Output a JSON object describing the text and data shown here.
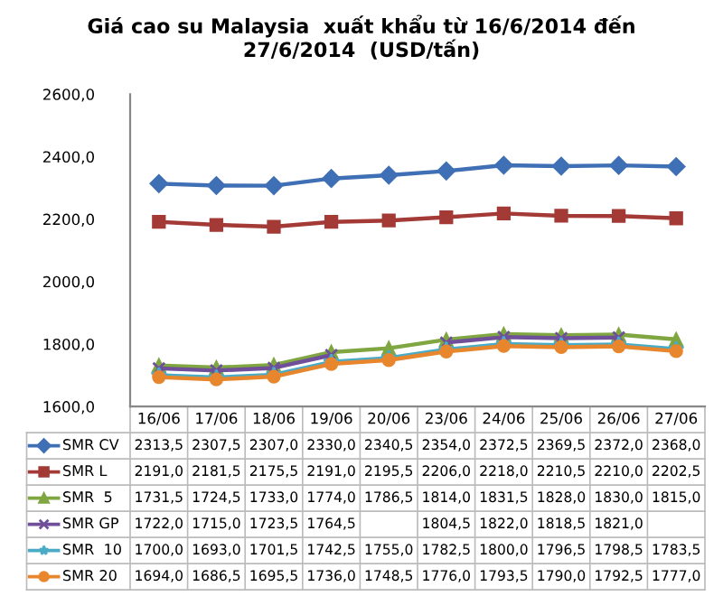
{
  "chart_data": {
    "type": "line",
    "title": "Giá cao su Malaysia  xuất khẩu từ 16/6/2014 đến\n27/6/2014  (USD/tấn)",
    "categories": [
      "16/06",
      "17/06",
      "18/06",
      "19/06",
      "20/06",
      "23/06",
      "24/06",
      "25/06",
      "26/06",
      "27/06"
    ],
    "ylim": [
      1600,
      2600
    ],
    "yticks": [
      {
        "value": 1600,
        "label": "1600,0"
      },
      {
        "value": 1800,
        "label": "1800,0"
      },
      {
        "value": 2000,
        "label": "2000,0"
      },
      {
        "value": 2200,
        "label": "2200,0"
      },
      {
        "value": 2400,
        "label": "2400,0"
      },
      {
        "value": 2600,
        "label": "2600,0"
      }
    ],
    "grid": false,
    "series": [
      {
        "name": "SMR CV",
        "color": "#3f6fb5",
        "marker": "diamond",
        "values": [
          2313.5,
          2307.5,
          2307.0,
          2330.0,
          2340.5,
          2354.0,
          2372.5,
          2369.5,
          2372.0,
          2368.0
        ],
        "value_labels": [
          "2313,5",
          "2307,5",
          "2307,0",
          "2330,0",
          "2340,5",
          "2354,0",
          "2372,5",
          "2369,5",
          "2372,0",
          "2368,0"
        ]
      },
      {
        "name": "SMR L",
        "color": "#a33a36",
        "marker": "square",
        "values": [
          2191.0,
          2181.5,
          2175.5,
          2191.0,
          2195.5,
          2206.0,
          2218.0,
          2210.5,
          2210.0,
          2202.5
        ],
        "value_labels": [
          "2191,0",
          "2181,5",
          "2175,5",
          "2191,0",
          "2195,5",
          "2206,0",
          "2218,0",
          "2210,5",
          "2210,0",
          "2202,5"
        ]
      },
      {
        "name": "SMR  5",
        "color": "#7fa640",
        "marker": "triangle",
        "values": [
          1731.5,
          1724.5,
          1733.0,
          1774.0,
          1786.5,
          1814.0,
          1831.5,
          1828.0,
          1830.0,
          1815.0
        ],
        "value_labels": [
          "1731,5",
          "1724,5",
          "1733,0",
          "1774,0",
          "1786,5",
          "1814,0",
          "1831,5",
          "1828,0",
          "1830,0",
          "1815,0"
        ]
      },
      {
        "name": "SMR GP",
        "color": "#6f4f9a",
        "marker": "cross",
        "values": [
          1722.0,
          1715.0,
          1723.5,
          1764.5,
          null,
          1804.5,
          1822.0,
          1818.5,
          1821.0,
          null
        ],
        "value_labels": [
          "1722,0",
          "1715,0",
          "1723,5",
          "1764,5",
          null,
          "1804,5",
          "1822,0",
          "1818,5",
          "1821,0",
          null
        ]
      },
      {
        "name": "SMR  10",
        "color": "#4aabc6",
        "marker": "star",
        "values": [
          1700.0,
          1693.0,
          1701.5,
          1742.5,
          1755.0,
          1782.5,
          1800.0,
          1796.5,
          1798.5,
          1783.5
        ],
        "value_labels": [
          "1700,0",
          "1693,0",
          "1701,5",
          "1742,5",
          "1755,0",
          "1782,5",
          "1800,0",
          "1796,5",
          "1798,5",
          "1783,5"
        ]
      },
      {
        "name": "SMR 20",
        "color": "#e8862e",
        "marker": "circle",
        "values": [
          1694.0,
          1686.5,
          1695.5,
          1736.0,
          1748.5,
          1776.0,
          1793.5,
          1790.0,
          1792.5,
          1777.0
        ],
        "value_labels": [
          "1694,0",
          "1686,5",
          "1695,5",
          "1736,0",
          "1748,5",
          "1776,0",
          "1793,5",
          "1790,0",
          "1792,5",
          "1777,0"
        ]
      }
    ],
    "legend": "bottom left"
  }
}
